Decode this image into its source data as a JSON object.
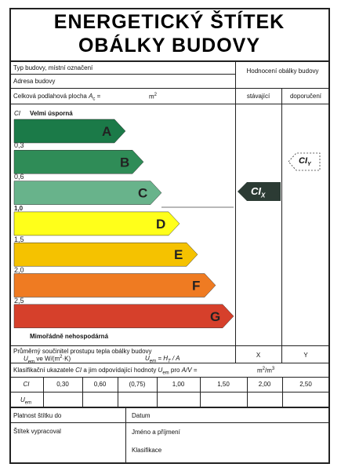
{
  "title": [
    "ENERGETICKÝ ŠTÍTEK",
    "OBÁLKY BUDOVY"
  ],
  "header": {
    "building_type": "Typ budovy, místní označení",
    "address": "Adresa budovy",
    "floor_area": [
      "Celková podlahová plocha ",
      "A",
      "c",
      " =",
      "m",
      "2"
    ],
    "rating": "Hodnocení obálky budovy",
    "current": "stávající",
    "recommended": "doporučení"
  },
  "scale": {
    "axis": "CI",
    "top": "Velmi úsporná",
    "bottom": "Mimořádně nehospodárná",
    "ticks": [
      "0,3",
      "0,6",
      "1,0",
      "1,5",
      "2,0",
      "2,5"
    ],
    "classes": [
      "A",
      "B",
      "C",
      "D",
      "E",
      "F",
      "G"
    ],
    "current": [
      "CI",
      "X"
    ],
    "recommended": [
      "CI",
      "Y"
    ]
  },
  "uem": {
    "label": "Průměrný součinitel prostupu tepla obálky budovy",
    "unit": [
      "U",
      "em",
      " ve W/(m",
      "2",
      "·K)"
    ],
    "formula": [
      "U",
      "em",
      " = H",
      "T",
      " / A"
    ],
    "current": "X",
    "recommended": "Y"
  },
  "classification": {
    "label": [
      "Klasifikační ukazatele ",
      "CI",
      " a jim odpovídající hodnoty ",
      "U",
      "em",
      " pro ",
      "A/V",
      " =",
      "m",
      "2",
      "/m",
      "3"
    ],
    "rows": [
      [
        "CI",
        "0,30",
        "0,60",
        "(0,75)",
        "1,00",
        "1,50",
        "2,00",
        "2,50"
      ],
      [
        "U",
        "em"
      ]
    ]
  },
  "footer": {
    "valid_until": "Platnost štítku do",
    "date": "Datum",
    "prepared_by": "Štítek vypracoval",
    "name": "Jméno a příjmení",
    "classification": "Klasifikace"
  }
}
